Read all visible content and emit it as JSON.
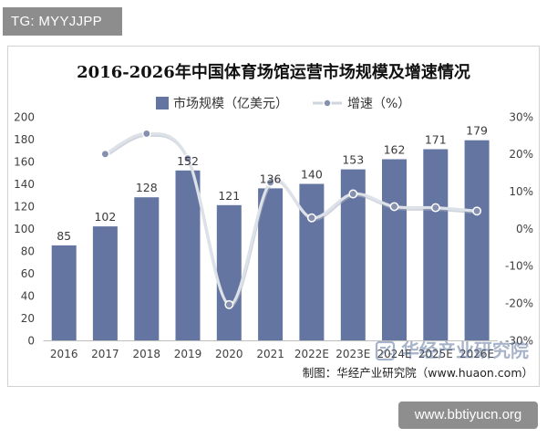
{
  "badge": {
    "text": "TG: MYYJJPP"
  },
  "chart_data": {
    "type": "bar",
    "title": "2016-2026年中国体育场馆运营市场规模及增速情况",
    "categories": [
      "2016",
      "2017",
      "2018",
      "2019",
      "2020",
      "2021",
      "2022E",
      "2023E",
      "2024E",
      "2025E",
      "2026E"
    ],
    "series": [
      {
        "name": "市场规模（亿美元）",
        "type": "bar",
        "color": "#6575a1",
        "data_labels": true,
        "values": [
          85,
          102,
          128,
          152,
          121,
          136,
          140,
          153,
          162,
          171,
          179
        ]
      },
      {
        "name": "增速（%）",
        "type": "line",
        "smooth": true,
        "color": "#dde1e8",
        "marker_color": "#858fae",
        "values": [
          null,
          20.0,
          25.5,
          18.8,
          -20.4,
          12.4,
          2.9,
          9.3,
          5.9,
          5.6,
          4.7
        ]
      }
    ],
    "y_left": {
      "range": [
        0,
        200
      ],
      "ticks": [
        0,
        20,
        40,
        60,
        80,
        100,
        120,
        140,
        160,
        180,
        200
      ]
    },
    "y_right": {
      "range": [
        -30,
        30
      ],
      "tick_labels": [
        "-30%",
        "-20%",
        "-10%",
        "0%",
        "10%",
        "20%",
        "30%"
      ]
    },
    "grid": false,
    "legend": "top"
  },
  "footer": {
    "source": "制图：华经产业研究院（www.huaon.com）"
  },
  "watermark": {
    "text": "华经产业研究院"
  },
  "site_badge": {
    "text": "www.bbtiyucn.org"
  }
}
